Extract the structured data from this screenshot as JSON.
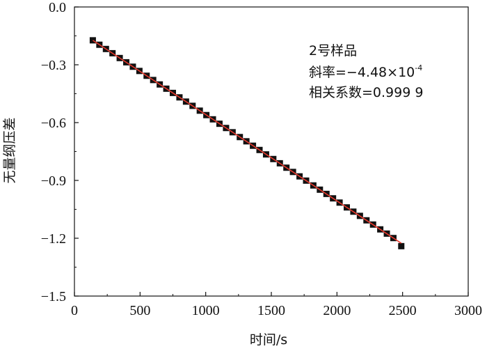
{
  "chart_data": {
    "type": "scatter",
    "xlabel": "时间/s",
    "ylabel": "无量纲压差",
    "xlim": [
      0,
      3000
    ],
    "ylim": [
      -1.5,
      0.0
    ],
    "x_ticks": [
      0,
      500,
      1000,
      1500,
      2000,
      2500,
      3000
    ],
    "y_ticks": [
      0.0,
      -0.3,
      -0.6,
      -0.9,
      -1.2,
      -1.5
    ],
    "y_tick_labels": [
      "0.0",
      "−0.3",
      "−0.6",
      "−0.9",
      "−1.2",
      "−1.5"
    ],
    "grid": false,
    "series": [
      {
        "marker": "square",
        "color": "#111111",
        "x": [
          140,
          190,
          240,
          290,
          345,
          395,
          445,
          495,
          550,
          600,
          650,
          700,
          750,
          800,
          850,
          900,
          955,
          1005,
          1055,
          1105,
          1155,
          1205,
          1260,
          1310,
          1360,
          1410,
          1460,
          1515,
          1565,
          1615,
          1665,
          1715,
          1765,
          1820,
          1870,
          1920,
          1970,
          2020,
          2075,
          2125,
          2175,
          2225,
          2275,
          2330,
          2380,
          2430,
          2490
        ],
        "y": [
          -0.173,
          -0.196,
          -0.218,
          -0.24,
          -0.265,
          -0.287,
          -0.31,
          -0.332,
          -0.357,
          -0.379,
          -0.402,
          -0.424,
          -0.446,
          -0.469,
          -0.491,
          -0.513,
          -0.538,
          -0.561,
          -0.583,
          -0.606,
          -0.628,
          -0.65,
          -0.675,
          -0.697,
          -0.72,
          -0.742,
          -0.765,
          -0.789,
          -0.811,
          -0.834,
          -0.856,
          -0.879,
          -0.901,
          -0.926,
          -0.948,
          -0.97,
          -0.993,
          -1.015,
          -1.04,
          -1.062,
          -1.084,
          -1.107,
          -1.129,
          -1.154,
          -1.176,
          -1.199,
          -1.241
        ]
      }
    ],
    "fit_line": {
      "color": "#e8382c",
      "x": [
        140,
        2490
      ],
      "y": [
        -0.173,
        -1.226
      ]
    },
    "annotation": {
      "line1": "2号样品",
      "line2_prefix": "斜率=−4.48×10",
      "line2_exp": "-4",
      "line3": "相关系数=0.999 9",
      "position": "top-right"
    }
  }
}
